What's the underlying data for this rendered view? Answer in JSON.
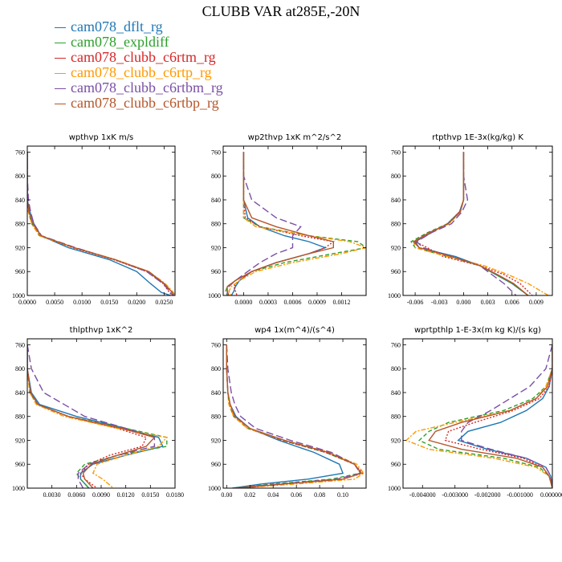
{
  "figure": {
    "title": "CLUBB VAR at285E,-20N",
    "legend": [
      {
        "label": "cam078_dflt_rg",
        "color": "#1f77b4"
      },
      {
        "label": "cam078_expldiff",
        "color": "#2ca02c"
      },
      {
        "label": "cam078_clubb_c6rtm_rg",
        "color": "#d62728"
      },
      {
        "label": "cam078_clubb_c6rtp_rg",
        "color": "#ff9900"
      },
      {
        "label": "cam078_clubb_c6rtbm_rg",
        "color": "#7b4fa6"
      },
      {
        "label": "cam078_clubb_c6rtbp_rg",
        "color": "#b5562a"
      }
    ]
  },
  "chart_data": [
    {
      "type": "line",
      "title": "wpthvp  1xK m/s",
      "xlim": [
        0,
        0.027
      ],
      "ylim": [
        1000,
        750
      ],
      "xticks": [
        0,
        0.005,
        0.01,
        0.015,
        0.02,
        0.025
      ],
      "xtick_labels": [
        "0.0000",
        "0.0050",
        "0.0100",
        "0.0150",
        "0.0200",
        "0.0250"
      ],
      "yticks": [
        760,
        800,
        840,
        880,
        920,
        960,
        1000
      ],
      "y": [
        760,
        800,
        840,
        860,
        880,
        900,
        920,
        940,
        960,
        980,
        995,
        1000
      ],
      "series": [
        {
          "values": [
            0,
            0,
            0,
            0.0005,
            0.0012,
            0.0025,
            0.0075,
            0.015,
            0.02,
            0.0225,
            0.0245,
            0.0262
          ],
          "dash": "solid"
        },
        {
          "values": [
            0,
            0,
            0,
            0.0002,
            0.0008,
            0.0022,
            0.0085,
            0.016,
            0.022,
            0.025,
            0.0265,
            0.027
          ],
          "dash": "dash"
        },
        {
          "values": [
            0,
            0,
            0,
            0.0003,
            0.0009,
            0.0023,
            0.0083,
            0.0158,
            0.0218,
            0.0248,
            0.026,
            0.0265
          ],
          "dash": "dot"
        },
        {
          "values": [
            0,
            0,
            0,
            0.0002,
            0.0008,
            0.0022,
            0.0086,
            0.0162,
            0.0222,
            0.0252,
            0.0267,
            0.027
          ],
          "dash": "dashdot"
        },
        {
          "values": [
            0,
            0,
            0.0002,
            0.0006,
            0.0012,
            0.0026,
            0.0088,
            0.016,
            0.0218,
            0.0248,
            0.0262,
            0.0266
          ],
          "dash": "longdash"
        },
        {
          "values": [
            0,
            0,
            0,
            0.0003,
            0.001,
            0.0025,
            0.0086,
            0.016,
            0.0222,
            0.025,
            0.0265,
            0.0268
          ],
          "dash": "solid"
        }
      ]
    },
    {
      "type": "line",
      "title": "wp2thvp  1xK m^2/s^2",
      "xlim": [
        -0.00025,
        0.0015
      ],
      "ylim": [
        1000,
        750
      ],
      "xticks": [
        0,
        0.0003,
        0.0006,
        0.0009,
        0.0012
      ],
      "xtick_labels": [
        "0.0000",
        "0.0003",
        "0.0006",
        "0.0009",
        "0.0012"
      ],
      "yticks": [
        760,
        800,
        840,
        880,
        920,
        960,
        1000
      ],
      "y": [
        760,
        800,
        840,
        870,
        885,
        900,
        910,
        920,
        930,
        945,
        960,
        975,
        985,
        993,
        1000
      ],
      "series": [
        {
          "values": [
            0,
            0,
            0,
            5e-05,
            0.0002,
            0.0005,
            0.0008,
            0.001,
            0.0008,
            0.0004,
            0.0001,
            -5e-05,
            -0.0001,
            -0.00012,
            -0.00015
          ],
          "dash": "solid"
        },
        {
          "values": [
            0,
            0,
            0,
            0,
            0.0002,
            0.0008,
            0.0014,
            0.0015,
            0.0011,
            0.0005,
            0.0001,
            -0.0001,
            -0.0002,
            -0.00022,
            -0.0002
          ],
          "dash": "dash"
        },
        {
          "values": [
            0,
            0,
            0,
            2e-05,
            0.0002,
            0.0007,
            0.0011,
            0.001,
            0.0008,
            0.0004,
            0.0001,
            -5e-05,
            -0.00012,
            -0.0001,
            -8e-05
          ],
          "dash": "dot"
        },
        {
          "values": [
            0,
            0,
            0,
            0,
            0.00015,
            0.0008,
            0.0013,
            0.0015,
            0.0012,
            0.0006,
            0.00015,
            -5e-05,
            -0.00015,
            -0.00018,
            -0.00015
          ],
          "dash": "dashdot"
        },
        {
          "values": [
            0,
            0,
            0.0001,
            0.0004,
            0.0007,
            0.0006,
            0.0006,
            0.0006,
            0.0004,
            0.0002,
            5e-05,
            -0.0001,
            -0.00018,
            -0.0002,
            -0.0002
          ],
          "dash": "longdash"
        },
        {
          "values": [
            0,
            0,
            0,
            0.0001,
            0.0004,
            0.0008,
            0.0011,
            0.0011,
            0.0008,
            0.0004,
            0.0001,
            -0.0001,
            -0.0002,
            -0.0002,
            -0.00018
          ],
          "dash": "solid"
        }
      ]
    },
    {
      "type": "line",
      "title": "rtpthvp   1E-3x(kg/kg) K",
      "xlim": [
        -0.0075,
        0.011
      ],
      "ylim": [
        1000,
        750
      ],
      "xticks": [
        -0.006,
        -0.003,
        0,
        0.003,
        0.006,
        0.009
      ],
      "xtick_labels": [
        "-0.006",
        "-0.003",
        "0.000",
        "0.003",
        "0.006",
        "0.009"
      ],
      "yticks": [
        760,
        800,
        840,
        880,
        920,
        960,
        1000
      ],
      "y": [
        760,
        800,
        840,
        860,
        880,
        895,
        910,
        920,
        935,
        950,
        965,
        980,
        1000
      ],
      "series": [
        {
          "values": [
            0,
            0,
            0,
            -0.0005,
            -0.002,
            -0.004,
            -0.006,
            -0.0055,
            -0.001,
            0.002,
            0.004,
            0.006,
            0.008
          ],
          "dash": "solid"
        },
        {
          "values": [
            0,
            0,
            0,
            -0.0004,
            -0.002,
            -0.0045,
            -0.0065,
            -0.006,
            -0.002,
            0.002,
            0.004,
            0.006,
            0.008
          ],
          "dash": "dash"
        },
        {
          "values": [
            0,
            0,
            0,
            -0.0005,
            -0.002,
            -0.004,
            -0.006,
            -0.0045,
            -0.0025,
            0.002,
            0.005,
            0.007,
            0.0085
          ],
          "dash": "dot"
        },
        {
          "values": [
            0,
            0,
            0,
            -0.0004,
            -0.0018,
            -0.0042,
            -0.0062,
            -0.006,
            -0.002,
            0.0025,
            0.0055,
            0.008,
            0.0105
          ],
          "dash": "dashdot"
        },
        {
          "values": [
            0,
            0,
            0.0005,
            -0.0002,
            -0.0015,
            -0.004,
            -0.0058,
            -0.005,
            -0.0015,
            0.002,
            0.0035,
            0.005,
            0.0065
          ],
          "dash": "longdash"
        },
        {
          "values": [
            0,
            0,
            0,
            -0.0004,
            -0.0019,
            -0.0043,
            -0.0062,
            -0.0055,
            -0.0015,
            0.002,
            0.0042,
            0.0062,
            0.008
          ],
          "dash": "solid"
        }
      ]
    },
    {
      "type": "line",
      "title": "thlpthvp  1xK^2",
      "xlim": [
        0,
        0.018
      ],
      "ylim": [
        1000,
        750
      ],
      "xticks": [
        0.003,
        0.006,
        0.009,
        0.012,
        0.015,
        0.018
      ],
      "xtick_labels": [
        "0.0030",
        "0.0060",
        "0.0090",
        "0.0120",
        "0.0150",
        "0.0180"
      ],
      "yticks": [
        760,
        800,
        840,
        880,
        920,
        960,
        1000
      ],
      "y": [
        760,
        800,
        840,
        860,
        880,
        900,
        915,
        930,
        945,
        960,
        975,
        985,
        1000
      ],
      "series": [
        {
          "values": [
            0,
            0,
            0.0005,
            0.0015,
            0.006,
            0.012,
            0.016,
            0.0165,
            0.012,
            0.008,
            0.0065,
            0.0065,
            0.0075
          ],
          "dash": "solid"
        },
        {
          "values": [
            0,
            0,
            0.0003,
            0.0012,
            0.005,
            0.012,
            0.017,
            0.017,
            0.011,
            0.007,
            0.006,
            0.0065,
            0.0075
          ],
          "dash": "dash"
        },
        {
          "values": [
            0,
            0,
            0.0004,
            0.0013,
            0.005,
            0.011,
            0.0145,
            0.014,
            0.01,
            0.0075,
            0.0065,
            0.007,
            0.0085
          ],
          "dash": "dot"
        },
        {
          "values": [
            0,
            0,
            0.0003,
            0.0011,
            0.0045,
            0.011,
            0.017,
            0.016,
            0.012,
            0.0085,
            0.008,
            0.0092,
            0.0105
          ],
          "dash": "dashdot"
        },
        {
          "values": [
            0,
            0.0005,
            0.002,
            0.0045,
            0.007,
            0.012,
            0.0155,
            0.0155,
            0.011,
            0.0075,
            0.0062,
            0.0062,
            0.0068
          ],
          "dash": "longdash"
        },
        {
          "values": [
            0,
            0,
            0.0004,
            0.0013,
            0.005,
            0.0115,
            0.0155,
            0.0145,
            0.011,
            0.0078,
            0.0068,
            0.007,
            0.008
          ],
          "dash": "solid"
        }
      ]
    },
    {
      "type": "line",
      "title": "wp4   1x(m^4)/(s^4)",
      "xlim": [
        -0.003,
        0.12
      ],
      "ylim": [
        1000,
        750
      ],
      "xticks": [
        0,
        0.02,
        0.04,
        0.06,
        0.08,
        0.1
      ],
      "xtick_labels": [
        "0.00",
        "0.02",
        "0.04",
        "0.06",
        "0.08",
        "0.10"
      ],
      "yticks": [
        760,
        800,
        840,
        880,
        920,
        960,
        1000
      ],
      "y": [
        760,
        800,
        840,
        860,
        880,
        900,
        920,
        940,
        960,
        975,
        985,
        993,
        1000
      ],
      "series": [
        {
          "values": [
            0,
            0,
            0.001,
            0.003,
            0.008,
            0.02,
            0.045,
            0.075,
            0.097,
            0.1,
            0.07,
            0.03,
            0.005
          ],
          "dash": "solid"
        },
        {
          "values": [
            0,
            0,
            0.001,
            0.002,
            0.006,
            0.018,
            0.048,
            0.085,
            0.11,
            0.115,
            0.09,
            0.04,
            0.005
          ],
          "dash": "dash"
        },
        {
          "values": [
            0,
            0,
            0.001,
            0.002,
            0.006,
            0.018,
            0.048,
            0.085,
            0.11,
            0.117,
            0.1,
            0.05,
            0.008
          ],
          "dash": "dot"
        },
        {
          "values": [
            0,
            0,
            0.001,
            0.002,
            0.006,
            0.018,
            0.05,
            0.088,
            0.112,
            0.118,
            0.11,
            0.06,
            0.01
          ],
          "dash": "dashdot"
        },
        {
          "values": [
            0,
            0.001,
            0.004,
            0.007,
            0.012,
            0.025,
            0.055,
            0.09,
            0.11,
            0.115,
            0.095,
            0.045,
            0.006
          ],
          "dash": "longdash"
        },
        {
          "values": [
            0,
            0,
            0.001,
            0.003,
            0.007,
            0.02,
            0.05,
            0.087,
            0.11,
            0.116,
            0.1,
            0.05,
            0.008
          ],
          "dash": "solid"
        }
      ]
    },
    {
      "type": "line",
      "title": "wprtpthlp  1-E-3x(m kg K)/(s kg)",
      "xlim": [
        -0.0046,
        0
      ],
      "ylim": [
        1000,
        750
      ],
      "xticks": [
        -0.004,
        -0.003,
        -0.002,
        -0.001,
        0
      ],
      "xtick_labels": [
        "-0.004000",
        "-0.003000",
        "-0.002000",
        "-0.001000",
        "0.000000"
      ],
      "yticks": [
        760,
        800,
        840,
        880,
        920,
        960,
        1000
      ],
      "y": [
        760,
        800,
        830,
        850,
        870,
        890,
        905,
        920,
        935,
        950,
        965,
        980,
        1000
      ],
      "series": [
        {
          "values": [
            0,
            0,
            -0.0001,
            -0.0003,
            -0.0008,
            -0.0016,
            -0.0026,
            -0.0029,
            -0.002,
            -0.0008,
            -0.0002,
            -5e-05,
            0
          ],
          "dash": "solid"
        },
        {
          "values": [
            0,
            0,
            -0.0002,
            -0.0006,
            -0.0015,
            -0.0032,
            -0.0038,
            -0.0041,
            -0.0035,
            -0.0015,
            -0.0004,
            -0.0001,
            0
          ],
          "dash": "dash"
        },
        {
          "values": [
            0,
            0,
            -0.0001,
            -0.0004,
            -0.0012,
            -0.0024,
            -0.0032,
            -0.0033,
            -0.0022,
            -0.0009,
            -0.0003,
            -0.0001,
            0
          ],
          "dash": "dot"
        },
        {
          "values": [
            0,
            0,
            -0.0002,
            -0.0005,
            -0.0013,
            -0.003,
            -0.0042,
            -0.0045,
            -0.0038,
            -0.0018,
            -0.0005,
            -0.0001,
            0
          ],
          "dash": "dashdot"
        },
        {
          "values": [
            0,
            -0.0002,
            -0.0007,
            -0.0013,
            -0.0019,
            -0.0026,
            -0.0028,
            -0.0028,
            -0.0019,
            -0.0008,
            -0.0002,
            -5e-05,
            0
          ],
          "dash": "longdash"
        },
        {
          "values": [
            0,
            0,
            -0.00015,
            -0.0005,
            -0.0013,
            -0.0028,
            -0.0036,
            -0.0038,
            -0.0028,
            -0.0011,
            -0.0003,
            -0.0001,
            0
          ],
          "dash": "solid"
        }
      ]
    }
  ]
}
